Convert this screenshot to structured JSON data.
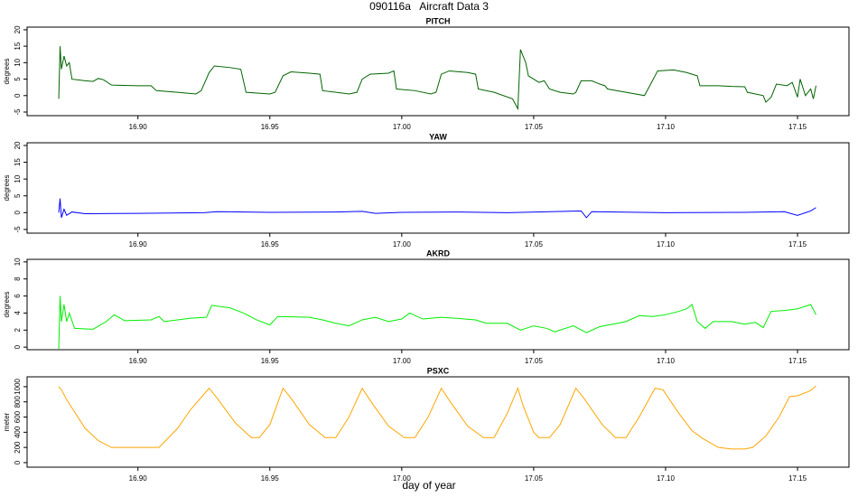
{
  "title": "090116a   Aircraft Data 3",
  "x_label": "day of year",
  "chart_data": [
    {
      "type": "line",
      "title": "PITCH",
      "y_label": "degrees",
      "color": "#006400",
      "xlim": [
        16.858,
        17.1695
      ],
      "xticks": [
        {
          "value": 16.9,
          "label": "16.90"
        },
        16.95,
        {
          "value": 17,
          "label": "17.00"
        },
        17.05,
        {
          "value": 17.1,
          "label": "17.10"
        },
        17.15
      ],
      "ylim": [
        -6.1,
        20.8
      ],
      "yticks": [
        -5,
        0,
        5,
        10,
        15,
        20
      ],
      "x": [
        16.87,
        16.8705,
        16.871,
        16.872,
        16.873,
        16.874,
        16.875,
        16.88,
        16.883,
        16.885,
        16.887,
        16.89,
        16.9,
        16.905,
        16.907,
        16.915,
        16.922,
        16.924,
        16.927,
        16.929,
        16.935,
        16.939,
        16.941,
        16.95,
        16.952,
        16.955,
        16.958,
        16.965,
        16.969,
        16.97,
        16.98,
        16.983,
        16.985,
        16.988,
        16.995,
        16.997,
        16.998,
        17.005,
        17.011,
        17.013,
        17.015,
        17.018,
        17.025,
        17.028,
        17.029,
        17.035,
        17.042,
        17.044,
        17.045,
        17.047,
        17.048,
        17.05,
        17.052,
        17.054,
        17.056,
        17.06,
        17.065,
        17.066,
        17.068,
        17.072,
        17.075,
        17.077,
        17.078,
        17.085,
        17.092,
        17.094,
        17.097,
        17.103,
        17.108,
        17.112,
        17.113,
        17.12,
        17.125,
        17.13,
        17.131,
        17.137,
        17.138,
        17.14,
        17.142,
        17.146,
        17.148,
        17.15,
        17.151,
        17.153,
        17.155,
        17.156,
        17.157
      ],
      "values": [
        -1,
        15,
        8,
        12,
        9,
        10,
        5,
        4.5,
        4.3,
        5.2,
        4.8,
        3.2,
        3,
        3,
        1.5,
        1,
        0.5,
        1.5,
        7,
        9,
        8.5,
        8,
        1,
        0.5,
        1,
        6,
        7.2,
        6.8,
        6.5,
        1.5,
        0.5,
        1,
        5,
        6.5,
        6.8,
        7.5,
        2,
        1.5,
        0.5,
        1,
        6.5,
        7.5,
        7,
        6.5,
        2,
        1,
        -1,
        -4,
        14,
        10,
        6,
        5,
        4,
        4.5,
        2,
        1,
        0.5,
        1,
        4.5,
        4.5,
        3.5,
        3,
        2,
        1,
        0,
        3,
        7.5,
        7.8,
        7,
        6,
        3,
        3,
        2.8,
        2.7,
        1,
        0,
        -2,
        -0.5,
        3.5,
        3,
        4,
        -0.5,
        5,
        0,
        2,
        -1,
        3
      ]
    },
    {
      "type": "line",
      "title": "YAW",
      "y_label": "degrees",
      "color": "#0000ff",
      "xlim": [
        16.858,
        17.1695
      ],
      "xticks": [
        {
          "value": 16.9,
          "label": "16.90"
        },
        16.95,
        {
          "value": 17,
          "label": "17.00"
        },
        17.05,
        {
          "value": 17.1,
          "label": "17.10"
        },
        17.15
      ],
      "ylim": [
        -6.1,
        20.8
      ],
      "yticks": [
        -5,
        0,
        5,
        10,
        15,
        20
      ],
      "x": [
        16.87,
        16.8705,
        16.871,
        16.872,
        16.873,
        16.875,
        16.88,
        16.9,
        16.925,
        16.93,
        16.95,
        16.975,
        16.985,
        16.99,
        17,
        17.02,
        17.04,
        17.068,
        17.07,
        17.072,
        17.1,
        17.13,
        17.145,
        17.15,
        17.155,
        17.157
      ],
      "values": [
        0,
        4.2,
        -1.5,
        1,
        -0.8,
        0.2,
        -0.3,
        -0.2,
        0,
        0.3,
        0.1,
        0.2,
        0.4,
        -0.2,
        0.1,
        0.2,
        0,
        0.5,
        -1.5,
        0.3,
        0,
        0.1,
        0.3,
        -0.8,
        0.5,
        1.5
      ]
    },
    {
      "type": "line",
      "title": "AKRD",
      "y_label": "degrees",
      "color": "#00ee00",
      "xlim": [
        16.858,
        17.1695
      ],
      "xticks": [
        {
          "value": 16.9,
          "label": "16.90"
        },
        16.95,
        {
          "value": 17,
          "label": "17.00"
        },
        17.05,
        {
          "value": 17.1,
          "label": "17.10"
        },
        17.15
      ],
      "ylim": [
        -0.3,
        10.3
      ],
      "yticks": [
        0,
        2,
        4,
        6,
        8,
        10
      ],
      "x": [
        16.87,
        16.8705,
        16.871,
        16.872,
        16.873,
        16.874,
        16.876,
        16.883,
        16.888,
        16.891,
        16.895,
        16.905,
        16.908,
        16.91,
        16.92,
        16.926,
        16.928,
        16.935,
        16.94,
        16.945,
        16.95,
        16.953,
        16.965,
        16.97,
        16.975,
        16.98,
        16.985,
        16.99,
        16.995,
        17,
        17.003,
        17.008,
        17.015,
        17.02,
        17.028,
        17.032,
        17.04,
        17.045,
        17.05,
        17.055,
        17.058,
        17.065,
        17.07,
        17.075,
        17.08,
        17.085,
        17.09,
        17.095,
        17.1,
        17.105,
        17.108,
        17.11,
        17.112,
        17.115,
        17.118,
        17.125,
        17.13,
        17.134,
        17.137,
        17.14,
        17.145,
        17.15,
        17.155,
        17.157
      ],
      "values": [
        -0.2,
        6,
        3,
        5,
        3,
        4,
        2.2,
        2.1,
        3,
        3.8,
        3.1,
        3.2,
        3.6,
        3,
        3.4,
        3.5,
        4.9,
        4.6,
        4,
        3.2,
        2.6,
        3.6,
        3.5,
        3.2,
        2.8,
        2.5,
        3.2,
        3.5,
        3,
        3.3,
        4,
        3.3,
        3.5,
        3.4,
        3.2,
        2.8,
        2.8,
        2,
        2.5,
        2.2,
        1.8,
        2.5,
        1.7,
        2.4,
        2.7,
        3,
        3.7,
        3.6,
        3.8,
        4.2,
        4.5,
        5,
        3,
        2.2,
        3,
        3,
        2.7,
        2.9,
        2.3,
        4.2,
        4.3,
        4.5,
        5,
        3.8
      ]
    },
    {
      "type": "line",
      "title": "PSXC",
      "y_label": "meter",
      "color": "#ffa500",
      "xlim": [
        16.858,
        17.1695
      ],
      "xticks": [
        {
          "value": 16.9,
          "label": "16.90"
        },
        16.95,
        {
          "value": 17,
          "label": "17.00"
        },
        17.05,
        {
          "value": 17.1,
          "label": "17.10"
        },
        17.15
      ],
      "ylim": [
        -60,
        1130
      ],
      "yticks": [
        0,
        200,
        400,
        600,
        800,
        1000
      ],
      "x": [
        16.87,
        16.871,
        16.873,
        16.88,
        16.885,
        16.89,
        16.908,
        16.915,
        16.92,
        16.927,
        16.93,
        16.937,
        16.943,
        16.946,
        16.95,
        16.955,
        16.958,
        16.965,
        16.971,
        16.975,
        16.98,
        16.985,
        16.988,
        16.995,
        17.001,
        17.005,
        17.01,
        17.015,
        17.018,
        17.025,
        17.031,
        17.035,
        17.04,
        17.044,
        17.046,
        17.05,
        17.052,
        17.056,
        17.06,
        17.066,
        17.069,
        17.076,
        17.081,
        17.085,
        17.09,
        17.096,
        17.099,
        17.105,
        17.11,
        17.114,
        17.12,
        17.125,
        17.13,
        17.133,
        17.138,
        17.143,
        17.147,
        17.15,
        17.153,
        17.155,
        17.157
      ],
      "values": [
        1000,
        960,
        830,
        450,
        290,
        200,
        200,
        450,
        700,
        980,
        850,
        520,
        330,
        330,
        500,
        980,
        850,
        500,
        330,
        330,
        600,
        980,
        820,
        480,
        330,
        330,
        600,
        980,
        820,
        480,
        330,
        330,
        650,
        980,
        750,
        400,
        330,
        330,
        500,
        980,
        850,
        500,
        330,
        330,
        600,
        980,
        960,
        650,
        420,
        320,
        200,
        180,
        180,
        200,
        350,
        600,
        870,
        880,
        920,
        950,
        1010
      ]
    }
  ]
}
